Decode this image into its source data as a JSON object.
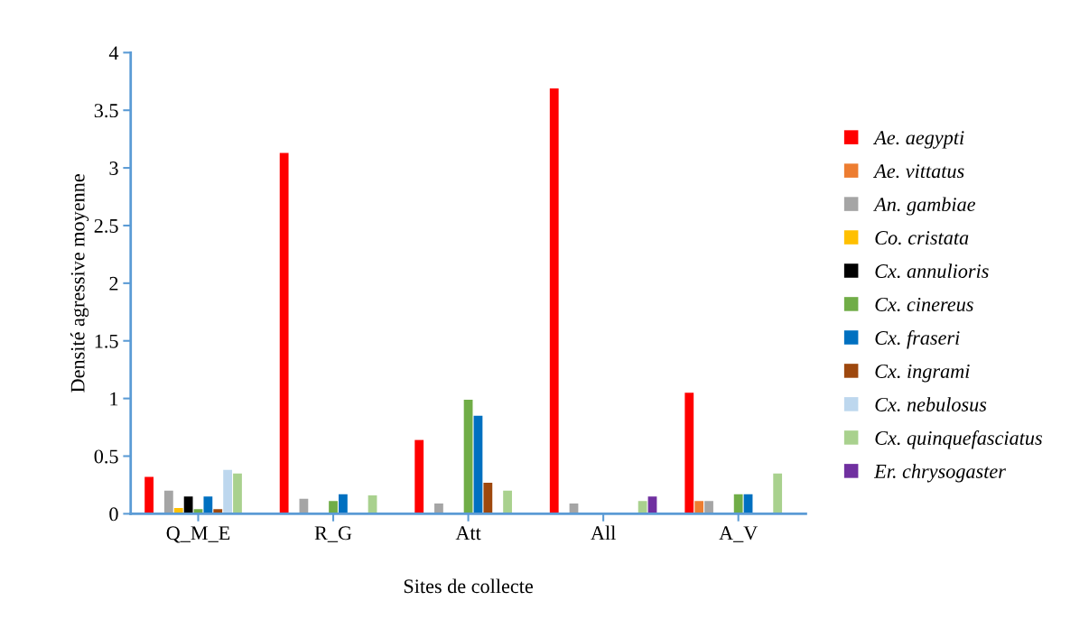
{
  "chart_data": {
    "type": "bar",
    "xlabel": "Sites de collecte",
    "ylabel": "Densité agressive moyenne",
    "categories": [
      "Q_M_E",
      "R_G",
      "Att",
      "All",
      "A_V"
    ],
    "ylim": [
      0,
      4
    ],
    "yticks": [
      0,
      0.5,
      1,
      1.5,
      2,
      2.5,
      3,
      3.5,
      4
    ],
    "grid": false,
    "legend": "right",
    "series": [
      {
        "name": "Ae. aegypti",
        "color": "#ff0000",
        "values": [
          0.32,
          3.13,
          0.64,
          3.69,
          1.05
        ]
      },
      {
        "name": "Ae. vittatus",
        "color": "#ed7d31",
        "values": [
          0,
          0,
          0,
          0,
          0.11
        ]
      },
      {
        "name": "An. gambiae",
        "color": "#a5a5a5",
        "values": [
          0.2,
          0.13,
          0.09,
          0.09,
          0.11
        ]
      },
      {
        "name": "Co. cristata",
        "color": "#ffc000",
        "values": [
          0.05,
          0,
          0,
          0,
          0
        ]
      },
      {
        "name": "Cx. annulioris",
        "color": "#000000",
        "values": [
          0.15,
          0,
          0,
          0,
          0
        ]
      },
      {
        "name": "Cx. cinereus",
        "color": "#70ad47",
        "values": [
          0.04,
          0.11,
          0.99,
          0,
          0.17
        ]
      },
      {
        "name": "Cx. fraseri",
        "color": "#0070c0",
        "values": [
          0.15,
          0.17,
          0.85,
          0,
          0.17
        ]
      },
      {
        "name": "Cx. ingrami",
        "color": "#9e480e",
        "values": [
          0.04,
          0,
          0.27,
          0,
          0
        ]
      },
      {
        "name": "Cx. nebulosus",
        "color": "#bdd7ee",
        "values": [
          0.38,
          0,
          0,
          0,
          0
        ]
      },
      {
        "name": "Cx. quinquefasciatus",
        "color": "#a9d18e",
        "values": [
          0.35,
          0.16,
          0.2,
          0.11,
          0.35
        ]
      },
      {
        "name": "Er. chrysogaster",
        "color": "#7030a0",
        "values": [
          0,
          0,
          0,
          0.15,
          0
        ]
      }
    ]
  }
}
